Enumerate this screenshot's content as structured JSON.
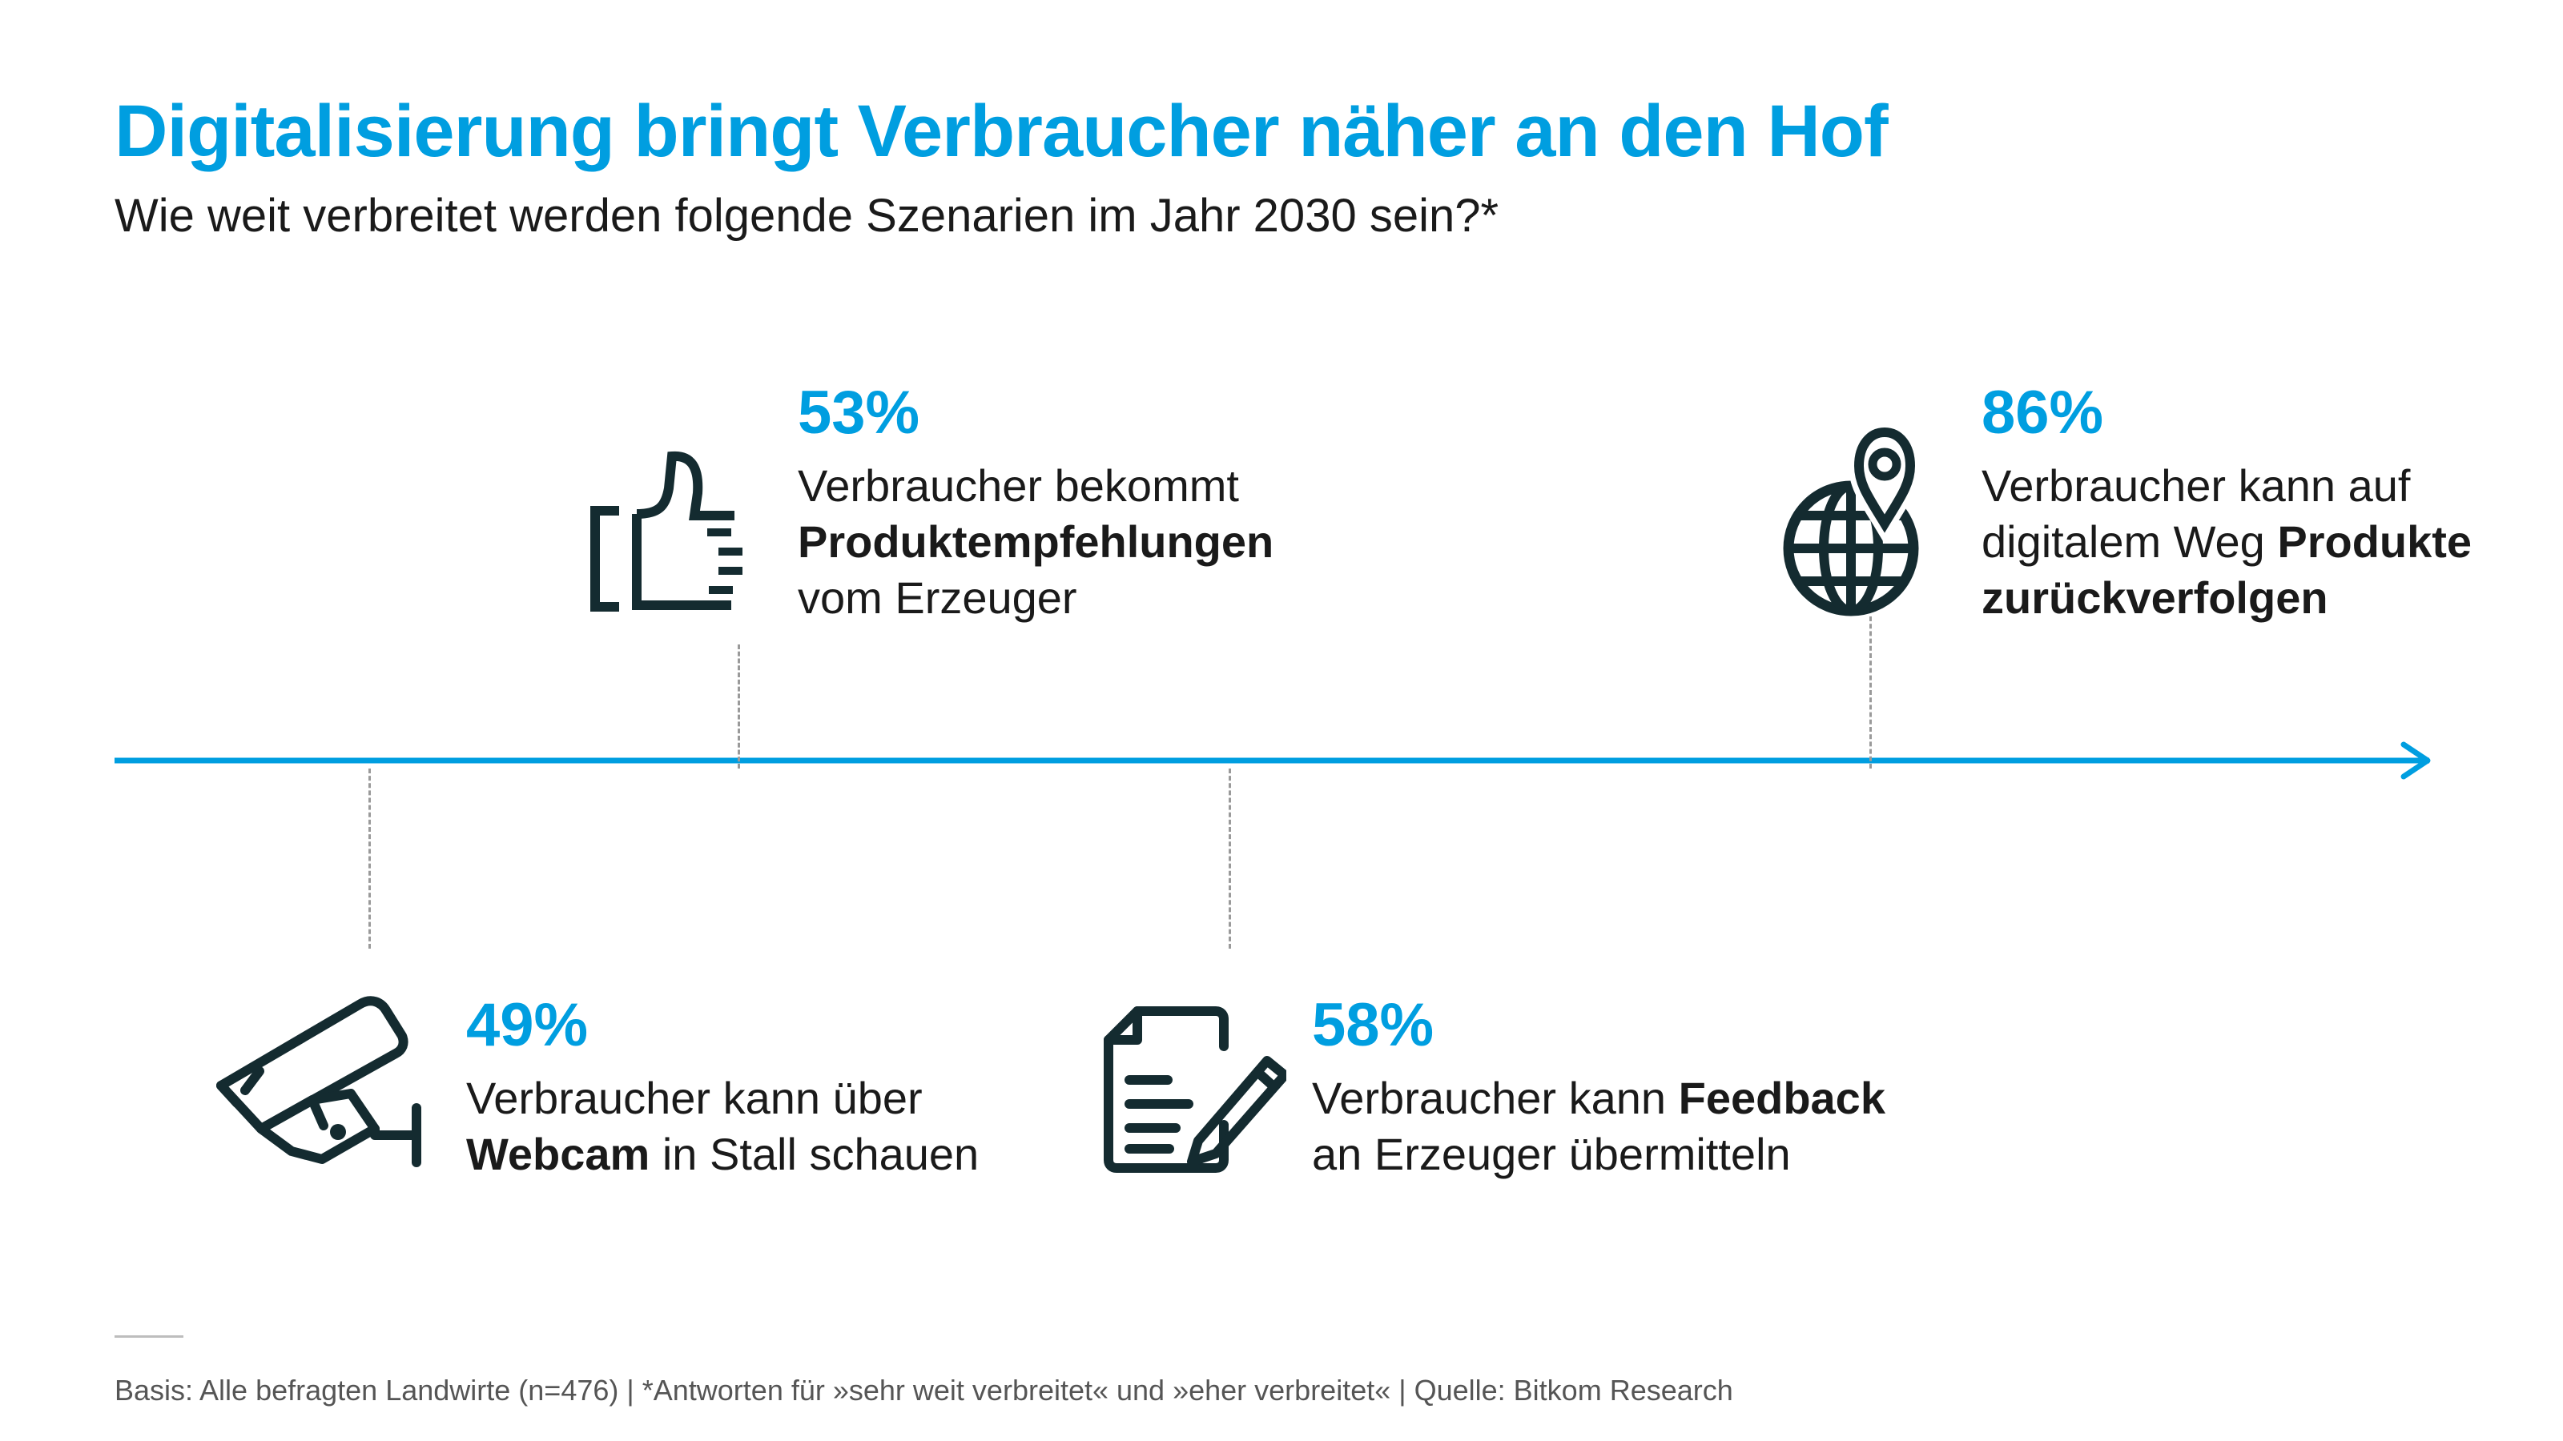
{
  "title": "Digitalisierung bringt Verbraucher näher an den Hof",
  "subtitle": "Wie weit verbreitet werden folgende Szenarien im Jahr 2030 sein?*",
  "colors": {
    "accent": "#009ee0",
    "icon": "#142b30",
    "text": "#1a1a1a",
    "dash": "#9a9a9a"
  },
  "items": [
    {
      "icon": "thumbs-up-icon",
      "percent": "53%",
      "lines": [
        [
          {
            "t": "Verbraucher bekommt",
            "b": false
          }
        ],
        [
          {
            "t": "Produktempfehlungen",
            "b": true
          }
        ],
        [
          {
            "t": "vom Erzeuger",
            "b": false
          }
        ]
      ]
    },
    {
      "icon": "globe-location-icon",
      "percent": "86%",
      "lines": [
        [
          {
            "t": "Verbraucher kann auf",
            "b": false
          }
        ],
        [
          {
            "t": "digitalem Weg ",
            "b": false
          },
          {
            "t": "Produkte",
            "b": true
          }
        ],
        [
          {
            "t": "zurückverfolgen",
            "b": true
          }
        ]
      ]
    },
    {
      "icon": "security-camera-icon",
      "percent": "49%",
      "lines": [
        [
          {
            "t": "Verbraucher kann über",
            "b": false
          }
        ],
        [
          {
            "t": "Webcam",
            "b": true
          },
          {
            "t": " in Stall schauen",
            "b": false
          }
        ]
      ]
    },
    {
      "icon": "document-pen-icon",
      "percent": "58%",
      "lines": [
        [
          {
            "t": "Verbraucher kann ",
            "b": false
          },
          {
            "t": "Feedback",
            "b": true
          }
        ],
        [
          {
            "t": "an Erzeuger übermitteln",
            "b": false
          }
        ]
      ]
    }
  ],
  "footnote": "Basis: Alle befragten Landwirte (n=476) | *Antworten für »sehr weit verbreitet« und »eher verbreitet« | Quelle: Bitkom Research"
}
